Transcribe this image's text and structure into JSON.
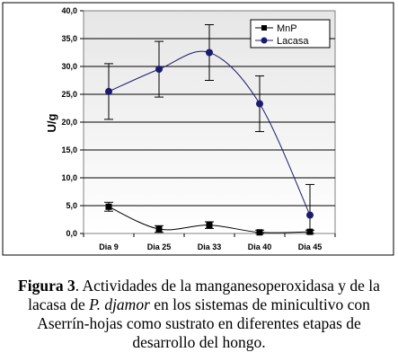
{
  "chart_data": {
    "type": "line",
    "categories": [
      "Dia 9",
      "Dia 25",
      "Dia 33",
      "Dia 40",
      "Dia 45"
    ],
    "ylabel": "U/g",
    "ylim": [
      0,
      40
    ],
    "yticks": [
      "0,0",
      "5,0",
      "10,0",
      "15,0",
      "20,0",
      "25,0",
      "30,0",
      "35,0",
      "40,0"
    ],
    "grid": true,
    "legend_position": "top-right",
    "series": [
      {
        "name": "MnP",
        "values": [
          4.8,
          0.8,
          1.5,
          0.2,
          0.3
        ],
        "errors": [
          0.8,
          0.6,
          0.6,
          0.4,
          0.3
        ],
        "color": "#000000",
        "marker": "square"
      },
      {
        "name": "Lacasa",
        "values": [
          25.5,
          29.5,
          32.5,
          23.3,
          3.3
        ],
        "errors": [
          5.0,
          5.0,
          5.0,
          5.0,
          5.5
        ],
        "color": "#1a1a6e",
        "marker": "circle"
      }
    ]
  },
  "caption": {
    "label": "Figura 3",
    "text_1": ". Actividades de la manganesoperoxidasa y de la lacasa de ",
    "species": "P. djamor",
    "text_2": " en los sistemas de minicultivo con Aserrín-hojas como sustrato en diferentes etapas de desarrollo del hongo."
  }
}
